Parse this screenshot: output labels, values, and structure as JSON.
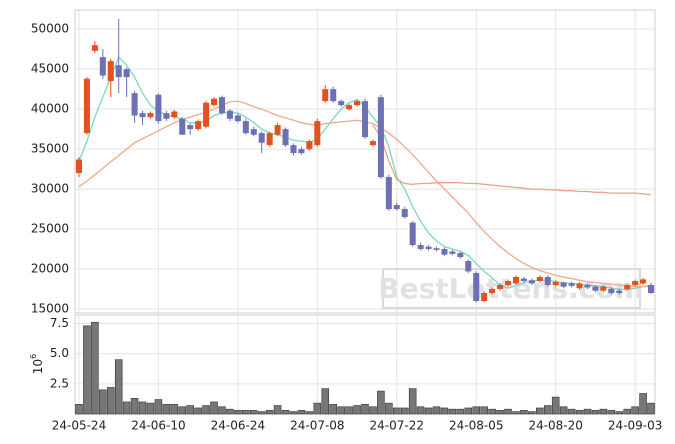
{
  "chart_data": {
    "type": "candlestick",
    "watermark": "BestLottens.com",
    "categories": [
      "24-05-24",
      null,
      null,
      null,
      null,
      null,
      null,
      null,
      null,
      null,
      "24-06-10",
      null,
      null,
      null,
      null,
      null,
      null,
      null,
      null,
      null,
      "24-06-24",
      null,
      null,
      null,
      null,
      null,
      null,
      null,
      null,
      null,
      "24-07-08",
      null,
      null,
      null,
      null,
      null,
      null,
      null,
      null,
      null,
      "24-07-22",
      null,
      null,
      null,
      null,
      null,
      null,
      null,
      null,
      null,
      "24-08-05",
      null,
      null,
      null,
      null,
      null,
      null,
      null,
      null,
      null,
      "24-08-20",
      null,
      null,
      null,
      null,
      null,
      null,
      null,
      null,
      null,
      "24-09-03",
      null,
      null
    ],
    "open": [
      32000,
      37000,
      47300,
      46500,
      43500,
      45500,
      45000,
      42000,
      39500,
      39000,
      41800,
      39500,
      39000,
      38800,
      38000,
      37500,
      37800,
      40500,
      41500,
      39800,
      39200,
      38500,
      37500,
      37000,
      35500,
      36800,
      37500,
      35500,
      35000,
      35000,
      35500,
      41000,
      42500,
      41000,
      40000,
      40500,
      41000,
      35500,
      41500,
      31500,
      28000,
      27500,
      25800,
      23000,
      22800,
      22600,
      22500,
      22200,
      22000,
      21000,
      19500,
      16000,
      17000,
      17500,
      18000,
      18200,
      18800,
      18600,
      18500,
      19000,
      18000,
      18300,
      18200,
      17600,
      18000,
      17800,
      17300,
      17500,
      17300,
      17500,
      18000,
      18200,
      18000
    ],
    "high": [
      34000,
      44000,
      48500,
      47500,
      46300,
      51300,
      45200,
      42300,
      39800,
      39700,
      42000,
      39800,
      39900,
      39000,
      38200,
      38700,
      41000,
      41500,
      41700,
      40000,
      39500,
      38800,
      37800,
      37200,
      37200,
      38300,
      37700,
      35700,
      35300,
      36200,
      38800,
      43000,
      42800,
      41200,
      40700,
      41200,
      41300,
      36200,
      41800,
      31800,
      28300,
      27800,
      26000,
      23300,
      23000,
      22800,
      22700,
      22400,
      22200,
      21200,
      19700,
      17200,
      17700,
      18200,
      18700,
      19200,
      19000,
      18800,
      19200,
      19200,
      18600,
      18400,
      18400,
      18400,
      18200,
      18000,
      18000,
      17700,
      17500,
      18200,
      18700,
      18900,
      18300
    ],
    "low": [
      31500,
      36800,
      47000,
      43800,
      41500,
      42000,
      41500,
      38300,
      38000,
      38800,
      38200,
      38500,
      38800,
      36800,
      36800,
      37300,
      37600,
      40300,
      39300,
      38500,
      38300,
      36800,
      36600,
      34500,
      35300,
      36600,
      35300,
      34200,
      34300,
      34800,
      35300,
      40800,
      40800,
      40300,
      39800,
      40300,
      36300,
      35300,
      31300,
      27300,
      27300,
      26300,
      22800,
      22300,
      22300,
      22200,
      21600,
      21700,
      21300,
      19500,
      15800,
      15900,
      16800,
      17300,
      17800,
      18000,
      18300,
      18000,
      18300,
      17800,
      17800,
      17600,
      17700,
      17400,
      17500,
      17100,
      17100,
      16800,
      16800,
      17300,
      17800,
      18000,
      16900
    ],
    "close": [
      33700,
      43800,
      48000,
      44200,
      46000,
      44000,
      44000,
      39200,
      39000,
      39500,
      38500,
      38800,
      39700,
      36800,
      37500,
      38500,
      40800,
      41300,
      39500,
      38800,
      38500,
      37000,
      36800,
      35800,
      37000,
      38000,
      35500,
      34500,
      34500,
      36000,
      38500,
      42500,
      41000,
      40500,
      40500,
      41000,
      36500,
      36000,
      31500,
      27500,
      27500,
      26500,
      23000,
      22500,
      22500,
      22400,
      21800,
      21900,
      21500,
      19700,
      16000,
      17000,
      17500,
      18000,
      18500,
      19000,
      18500,
      18200,
      19000,
      18000,
      18400,
      17800,
      17900,
      18200,
      17700,
      17300,
      17800,
      17000,
      17000,
      18000,
      18500,
      18700,
      17000
    ],
    "up_color": "#e2511f",
    "down_color": "#6c70b4",
    "ylim": [
      14500,
      52400
    ],
    "yticks": [
      15000,
      20000,
      25000,
      30000,
      35000,
      40000,
      45000,
      50000
    ],
    "grid": true,
    "series": [
      {
        "color": "#7fd6c0",
        "values": [
          33500,
          36000,
          39000,
          41500,
          44000,
          46500,
          45500,
          44000,
          42000,
          40500,
          39700,
          39300,
          39000,
          38800,
          38300,
          38200,
          38500,
          39200,
          39500,
          39600,
          39500,
          39000,
          38300,
          37500,
          37000,
          36800,
          36500,
          36100,
          36000,
          35800,
          36300,
          37500,
          38800,
          40000,
          40800,
          41200,
          40300,
          39000,
          37800,
          35300,
          31500,
          30000,
          27800,
          26000,
          24500,
          23500,
          22800,
          22500,
          22200,
          21700,
          20700,
          19700,
          18900,
          18000,
          17600,
          17900,
          18300,
          18500,
          18600,
          18600,
          18400,
          18300,
          18200,
          18100,
          18000,
          17900,
          17800,
          17600,
          17500,
          17400,
          17600,
          17800,
          18000
        ]
      },
      {
        "color": "#f0a98a",
        "values": [
          30300,
          31000,
          31800,
          32600,
          33400,
          34200,
          35000,
          35800,
          36300,
          36800,
          37300,
          37800,
          38300,
          38700,
          39000,
          39300,
          39600,
          40000,
          40500,
          40900,
          41000,
          40700,
          40300,
          40000,
          39600,
          39200,
          38900,
          38600,
          38300,
          38100,
          38000,
          38200,
          38300,
          38400,
          38500,
          38600,
          38400,
          38200,
          37600,
          37000,
          36200,
          35300,
          34300,
          33200,
          32100,
          31000,
          30000,
          29000,
          28000,
          27000,
          25800,
          24700,
          23700,
          22800,
          22000,
          21300,
          20700,
          20200,
          19800,
          19500,
          19200,
          19000,
          18800,
          18600,
          18400,
          18300,
          18200,
          18100,
          18000,
          17900,
          17800,
          17800,
          17800
        ]
      },
      {
        "color": "#e9a38c",
        "values": [
          null,
          null,
          null,
          null,
          null,
          null,
          null,
          null,
          null,
          null,
          null,
          null,
          null,
          null,
          null,
          null,
          null,
          null,
          null,
          null,
          null,
          null,
          null,
          null,
          null,
          null,
          null,
          null,
          null,
          null,
          null,
          null,
          null,
          null,
          null,
          null,
          null,
          38000,
          36500,
          33500,
          31200,
          30700,
          30600,
          30700,
          30700,
          30800,
          30800,
          30800,
          30800,
          30700,
          30700,
          30600,
          30500,
          30400,
          30300,
          30200,
          30100,
          30000,
          30000,
          29900,
          29900,
          29800,
          29800,
          29700,
          29700,
          29600,
          29600,
          29500,
          29500,
          29500,
          29500,
          29400,
          29300
        ]
      }
    ],
    "volume": {
      "type": "bar",
      "color": "#777777",
      "unit_base": "10",
      "unit_exponent": "6",
      "ylim": [
        0,
        8.2
      ],
      "yticks": [
        2.5,
        {
          "value": 5,
          "label": "5.0"
        },
        7.5
      ],
      "values": [
        0.8,
        7.3,
        7.6,
        2.0,
        2.2,
        4.5,
        1.0,
        1.3,
        1.0,
        0.9,
        1.2,
        0.8,
        0.8,
        0.6,
        0.7,
        0.5,
        0.7,
        1.0,
        0.6,
        0.4,
        0.3,
        0.3,
        0.3,
        0.2,
        0.3,
        0.7,
        0.3,
        0.2,
        0.3,
        0.2,
        0.9,
        2.1,
        0.8,
        0.6,
        0.6,
        0.7,
        0.8,
        0.6,
        1.9,
        0.9,
        0.5,
        0.5,
        2.1,
        0.6,
        0.5,
        0.6,
        0.5,
        0.4,
        0.4,
        0.5,
        0.6,
        0.6,
        0.4,
        0.3,
        0.4,
        0.2,
        0.3,
        0.2,
        0.5,
        0.7,
        1.4,
        0.6,
        0.4,
        0.3,
        0.4,
        0.3,
        0.4,
        0.3,
        0.2,
        0.4,
        0.6,
        1.7,
        0.9
      ]
    }
  }
}
